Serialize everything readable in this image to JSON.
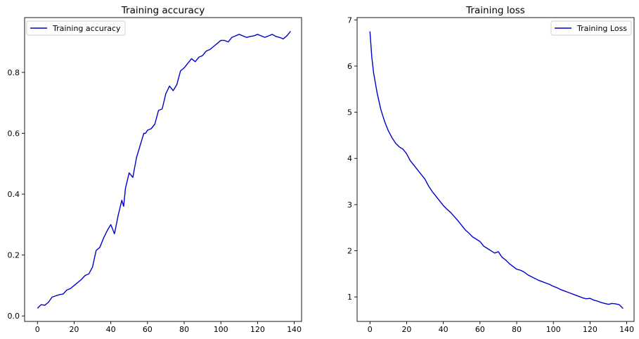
{
  "figure": {
    "line_color": "#0000cd",
    "frame_color": "#000000",
    "background": "#ffffff"
  },
  "chart_data": [
    {
      "type": "line",
      "title": "Training accuracy",
      "xlabel": "",
      "ylabel": "",
      "xlim": [
        -7,
        144
      ],
      "ylim": [
        -0.018,
        0.98
      ],
      "xticks": [
        0,
        20,
        40,
        60,
        80,
        100,
        120,
        140
      ],
      "yticks": [
        0.0,
        0.2,
        0.4,
        0.6,
        0.8
      ],
      "xtick_labels": [
        "0",
        "20",
        "40",
        "60",
        "80",
        "100",
        "120",
        "140"
      ],
      "ytick_labels": [
        "0.0",
        "0.2",
        "0.4",
        "0.6",
        "0.8"
      ],
      "grid": false,
      "legend_position": "top-left",
      "series": [
        {
          "name": "Training accuracy",
          "color": "#0000cd",
          "x": [
            0,
            2,
            4,
            6,
            8,
            10,
            12,
            14,
            16,
            18,
            20,
            22,
            24,
            26,
            28,
            30,
            32,
            34,
            36,
            38,
            40,
            42,
            44,
            46,
            47,
            48,
            50,
            52,
            54,
            56,
            58,
            59,
            60,
            62,
            64,
            66,
            68,
            70,
            72,
            74,
            76,
            78,
            80,
            82,
            84,
            86,
            88,
            90,
            92,
            94,
            96,
            98,
            100,
            102,
            104,
            106,
            108,
            110,
            112,
            114,
            116,
            118,
            120,
            122,
            124,
            126,
            128,
            130,
            132,
            134,
            136,
            138
          ],
          "y": [
            0.025,
            0.037,
            0.035,
            0.045,
            0.062,
            0.066,
            0.07,
            0.072,
            0.085,
            0.09,
            0.1,
            0.11,
            0.12,
            0.133,
            0.138,
            0.16,
            0.215,
            0.225,
            0.255,
            0.28,
            0.3,
            0.27,
            0.33,
            0.38,
            0.36,
            0.42,
            0.47,
            0.455,
            0.52,
            0.56,
            0.6,
            0.6,
            0.61,
            0.615,
            0.63,
            0.675,
            0.68,
            0.73,
            0.755,
            0.74,
            0.76,
            0.805,
            0.815,
            0.83,
            0.845,
            0.835,
            0.85,
            0.855,
            0.87,
            0.875,
            0.885,
            0.895,
            0.905,
            0.905,
            0.9,
            0.915,
            0.92,
            0.925,
            0.92,
            0.915,
            0.918,
            0.92,
            0.925,
            0.92,
            0.915,
            0.92,
            0.925,
            0.918,
            0.915,
            0.91,
            0.92,
            0.935
          ]
        }
      ]
    },
    {
      "type": "line",
      "title": "Training loss",
      "xlabel": "",
      "ylabel": "",
      "xlim": [
        -7,
        144
      ],
      "ylim": [
        0.47,
        7.05
      ],
      "xticks": [
        0,
        20,
        40,
        60,
        80,
        100,
        120,
        140
      ],
      "yticks": [
        1,
        2,
        3,
        4,
        5,
        6,
        7
      ],
      "xtick_labels": [
        "0",
        "20",
        "40",
        "60",
        "80",
        "100",
        "120",
        "140"
      ],
      "ytick_labels": [
        "1",
        "2",
        "3",
        "4",
        "5",
        "6",
        "7"
      ],
      "grid": false,
      "legend_position": "top-right",
      "series": [
        {
          "name": "Training Loss",
          "color": "#0000cd",
          "x": [
            0,
            1,
            2,
            4,
            6,
            8,
            10,
            12,
            14,
            16,
            18,
            20,
            22,
            24,
            26,
            28,
            30,
            32,
            34,
            36,
            38,
            40,
            42,
            44,
            46,
            48,
            50,
            52,
            54,
            56,
            58,
            60,
            62,
            64,
            66,
            68,
            70,
            72,
            74,
            76,
            78,
            80,
            82,
            84,
            86,
            88,
            90,
            92,
            94,
            96,
            98,
            100,
            102,
            104,
            106,
            108,
            110,
            112,
            114,
            116,
            118,
            120,
            122,
            124,
            126,
            128,
            130,
            132,
            134,
            136,
            138
          ],
          "y": [
            6.75,
            6.2,
            5.85,
            5.4,
            5.05,
            4.8,
            4.6,
            4.45,
            4.33,
            4.25,
            4.2,
            4.1,
            3.95,
            3.85,
            3.75,
            3.65,
            3.55,
            3.4,
            3.28,
            3.18,
            3.08,
            2.98,
            2.9,
            2.83,
            2.74,
            2.65,
            2.55,
            2.45,
            2.38,
            2.3,
            2.25,
            2.2,
            2.1,
            2.05,
            2.0,
            1.95,
            1.98,
            1.86,
            1.8,
            1.72,
            1.66,
            1.6,
            1.58,
            1.54,
            1.48,
            1.44,
            1.4,
            1.36,
            1.33,
            1.3,
            1.27,
            1.23,
            1.2,
            1.16,
            1.13,
            1.1,
            1.07,
            1.04,
            1.01,
            0.98,
            0.96,
            0.97,
            0.93,
            0.91,
            0.88,
            0.86,
            0.84,
            0.86,
            0.85,
            0.83,
            0.75
          ]
        }
      ]
    }
  ]
}
